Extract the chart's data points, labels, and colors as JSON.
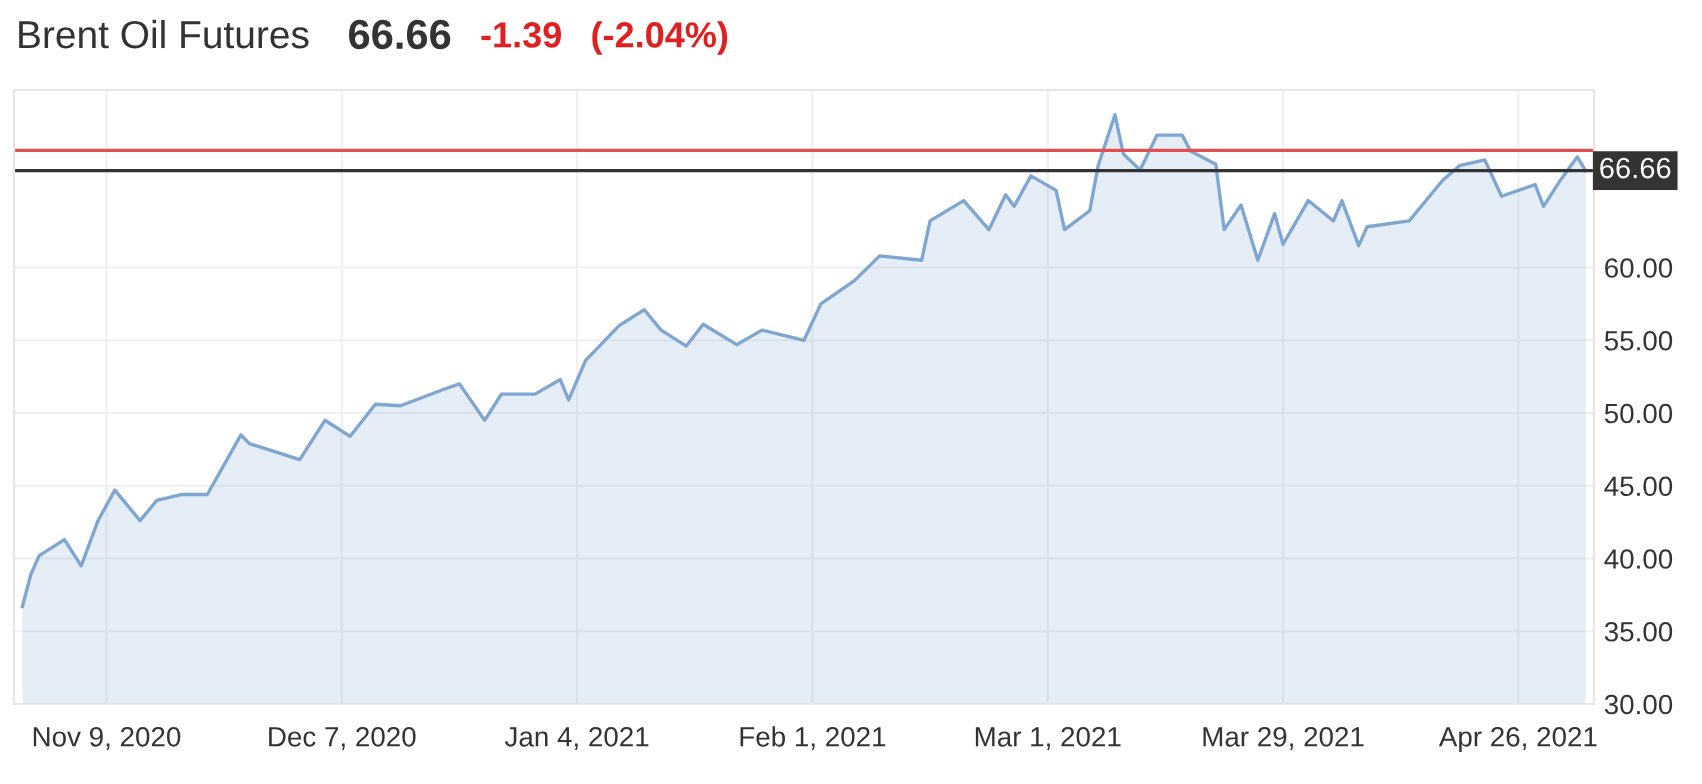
{
  "chart_data": {
    "type": "area",
    "title": "Brent Oil Futures",
    "annotations": [
      "66.66",
      "-1.39",
      "(-2.04%)"
    ],
    "x": [
      "2020-10-30",
      "2020-10-31",
      "2020-11-01",
      "2020-11-04",
      "2020-11-06",
      "2020-11-08",
      "2020-11-10",
      "2020-11-13",
      "2020-11-15",
      "2020-11-18",
      "2020-11-21",
      "2020-11-25",
      "2020-11-26",
      "2020-12-02",
      "2020-12-05",
      "2020-12-08",
      "2020-12-11",
      "2020-12-14",
      "2020-12-19",
      "2020-12-21",
      "2020-12-24",
      "2020-12-26",
      "2020-12-30",
      "2021-01-02",
      "2021-01-03",
      "2021-01-05",
      "2021-01-09",
      "2021-01-12",
      "2021-01-14",
      "2021-01-17",
      "2021-01-19",
      "2021-01-23",
      "2021-01-26",
      "2021-01-31",
      "2021-02-02",
      "2021-02-06",
      "2021-02-09",
      "2021-02-14",
      "2021-02-15",
      "2021-02-19",
      "2021-02-22",
      "2021-02-24",
      "2021-02-25",
      "2021-02-27",
      "2021-03-02",
      "2021-03-03",
      "2021-03-06",
      "2021-03-07",
      "2021-03-09",
      "2021-03-10",
      "2021-03-12",
      "2021-03-14",
      "2021-03-17",
      "2021-03-18",
      "2021-03-21",
      "2021-03-22",
      "2021-03-24",
      "2021-03-26",
      "2021-03-28",
      "2021-03-29",
      "2021-04-01",
      "2021-04-04",
      "2021-04-05",
      "2021-04-07",
      "2021-04-08",
      "2021-04-13",
      "2021-04-17",
      "2021-04-19",
      "2021-04-22",
      "2021-04-24",
      "2021-04-28",
      "2021-04-29",
      "2021-05-01",
      "2021-05-03",
      "2021-05-04"
    ],
    "series": [
      {
        "color": "#7ea6d0",
        "values": [
          36.7,
          38.9,
          40.2,
          41.3,
          39.5,
          42.6,
          44.7,
          42.6,
          44.0,
          44.4,
          44.4,
          48.5,
          47.9,
          46.8,
          49.5,
          48.4,
          50.6,
          50.5,
          51.6,
          52.0,
          49.5,
          51.3,
          51.3,
          52.3,
          50.9,
          53.6,
          56.0,
          57.1,
          55.7,
          54.6,
          56.1,
          54.7,
          55.7,
          55.0,
          57.5,
          59.1,
          60.8,
          60.5,
          63.2,
          64.6,
          62.6,
          65.0,
          64.2,
          66.3,
          65.3,
          62.6,
          63.9,
          67.0,
          70.5,
          67.8,
          66.7,
          69.1,
          69.1,
          68.0,
          67.1,
          62.6,
          64.3,
          60.5,
          63.7,
          61.6,
          64.6,
          63.2,
          64.6,
          61.5,
          62.8,
          63.2,
          66.0,
          67.0,
          67.4,
          64.9,
          65.7,
          64.2,
          66.0,
          67.6,
          66.66
        ]
      }
    ],
    "xlim": [
      "2020-10-29",
      "2021-05-05"
    ],
    "xticks": [
      {
        "value": "2020-11-09",
        "label": "Nov 9, 2020"
      },
      {
        "value": "2020-12-07",
        "label": "Dec 7, 2020"
      },
      {
        "value": "2021-01-04",
        "label": "Jan 4, 2021"
      },
      {
        "value": "2021-02-01",
        "label": "Feb 1, 2021"
      },
      {
        "value": "2021-03-01",
        "label": "Mar 1, 2021"
      },
      {
        "value": "2021-03-29",
        "label": "Mar 29, 2021"
      },
      {
        "value": "2021-04-26",
        "label": "Apr 26, 2021"
      }
    ],
    "ylim": [
      30,
      72.2
    ],
    "yticks": [
      {
        "value": 30,
        "label": "30.00"
      },
      {
        "value": 35,
        "label": "35.00"
      },
      {
        "value": 40,
        "label": "40.00"
      },
      {
        "value": 45,
        "label": "45.00"
      },
      {
        "value": 50,
        "label": "50.00"
      },
      {
        "value": 55,
        "label": "55.00"
      },
      {
        "value": 60,
        "label": "60.00"
      }
    ],
    "ref_lines": [
      {
        "axis": "y",
        "value": 68.05,
        "color": "#e05050"
      },
      {
        "axis": "y",
        "value": 66.66,
        "label": "66.66",
        "color": "#333333"
      }
    ],
    "grid": true
  }
}
